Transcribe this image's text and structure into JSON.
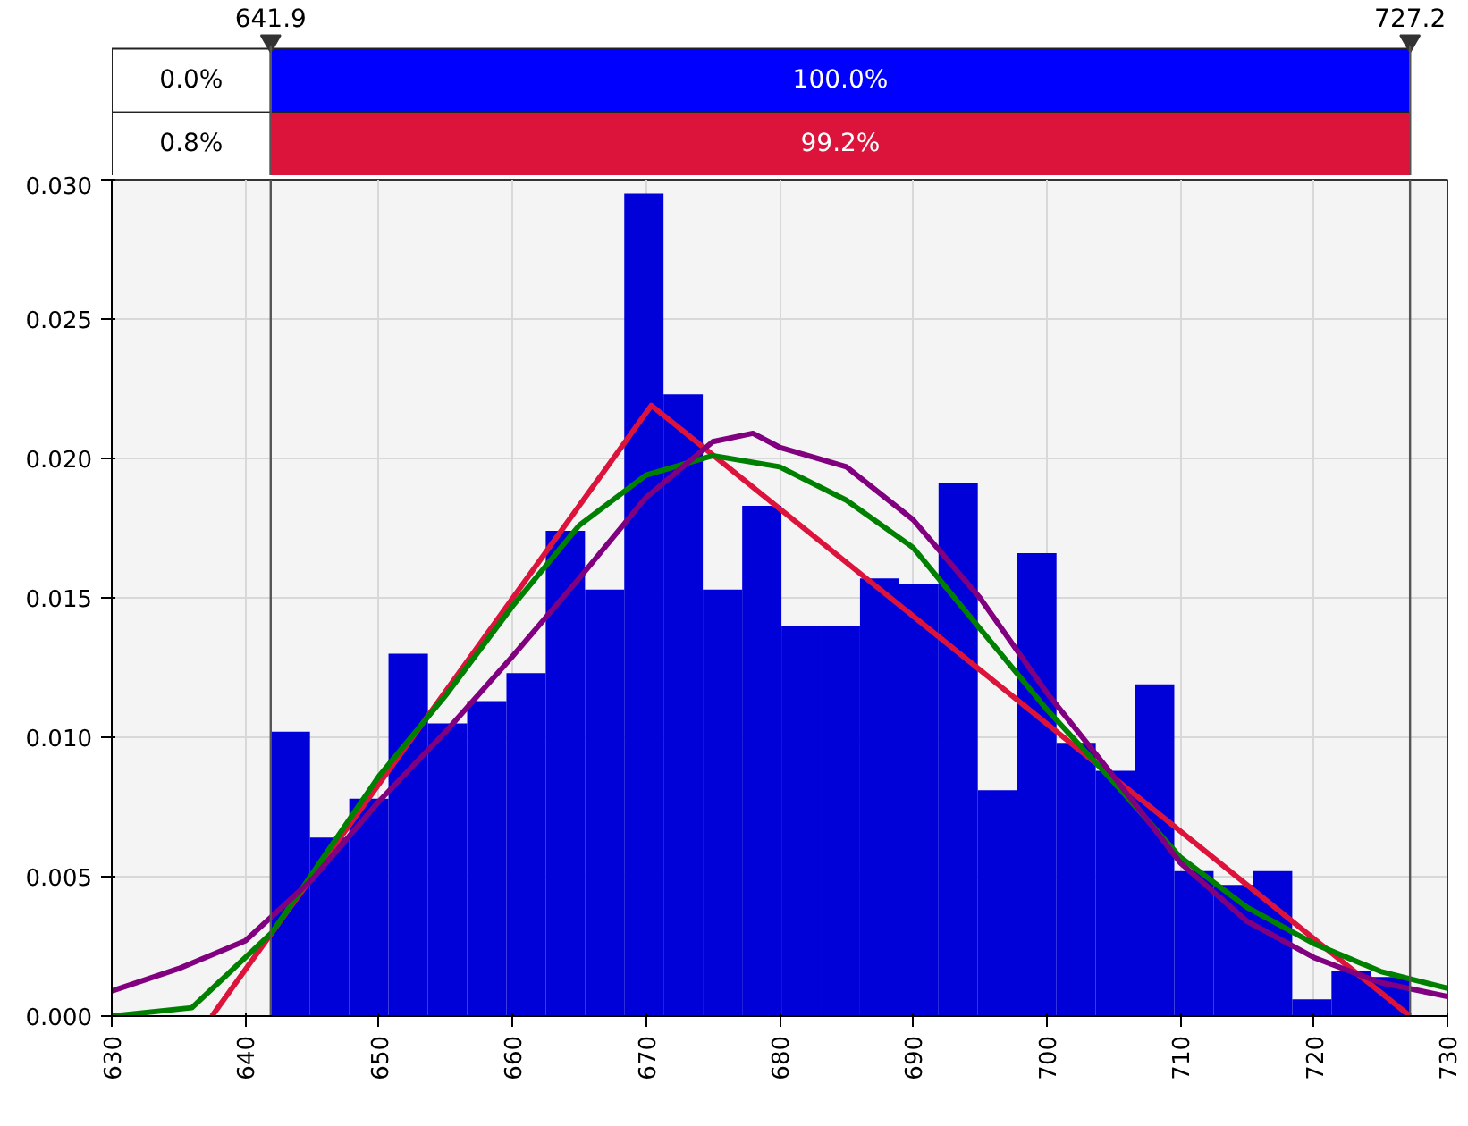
{
  "chart_data": {
    "type": "histogram",
    "bins": [
      641.9,
      644.84,
      647.78,
      650.72,
      653.67,
      656.61,
      659.55,
      662.49,
      665.43,
      668.37,
      671.31,
      674.25,
      677.2,
      680.14,
      683.08,
      686.02,
      688.96,
      691.9,
      694.84,
      697.79,
      700.73,
      703.67,
      706.61,
      709.55,
      712.49,
      715.43,
      718.38,
      721.32,
      724.26,
      727.2
    ],
    "values": [
      0.0102,
      0.0064,
      0.0078,
      0.013,
      0.0105,
      0.0113,
      0.0123,
      0.0174,
      0.0153,
      0.0295,
      0.0223,
      0.0153,
      0.0183,
      0.014,
      0.014,
      0.0157,
      0.0155,
      0.0191,
      0.0081,
      0.0166,
      0.0098,
      0.0088,
      0.0119,
      0.0052,
      0.0047,
      0.0052,
      0.0006,
      0.0016,
      0.0014
    ],
    "color": "#0000d8",
    "series": [
      {
        "type": "line",
        "color": "#dc143c",
        "x": [
          637.5,
          670.4,
          727.2
        ],
        "values": [
          0.0,
          0.0219,
          0.0
        ]
      },
      {
        "type": "line",
        "color": "#008000",
        "x": [
          630,
          636,
          638,
          642,
          650,
          655,
          660,
          665,
          670,
          675,
          680,
          685,
          690,
          695,
          700,
          705,
          710,
          715,
          720,
          725,
          730
        ],
        "values": [
          0.0,
          0.0003,
          0.0012,
          0.003,
          0.0086,
          0.0115,
          0.0147,
          0.0176,
          0.0194,
          0.0201,
          0.0197,
          0.0185,
          0.0168,
          0.0139,
          0.011,
          0.0084,
          0.0057,
          0.0039,
          0.0026,
          0.0016,
          0.001
        ]
      },
      {
        "type": "line",
        "color": "#800080",
        "x": [
          630,
          635,
          640,
          645,
          650,
          655,
          660,
          665,
          670,
          675,
          678,
          680,
          685,
          690,
          695,
          700,
          705,
          710,
          715,
          720,
          725,
          730
        ],
        "values": [
          0.0009,
          0.0017,
          0.0027,
          0.0049,
          0.0077,
          0.0102,
          0.0129,
          0.0157,
          0.0186,
          0.0206,
          0.0209,
          0.0204,
          0.0197,
          0.0178,
          0.015,
          0.0116,
          0.0086,
          0.0055,
          0.0034,
          0.0021,
          0.0012,
          0.0007
        ]
      }
    ],
    "xlim": [
      630,
      730
    ],
    "xticks": [
      630,
      640,
      650,
      660,
      670,
      680,
      690,
      700,
      710,
      720,
      730
    ],
    "ylim": [
      0,
      0.03
    ],
    "yticks": [
      {
        "value": 0,
        "label": "0.000"
      },
      {
        "value": 0.005,
        "label": "0.005"
      },
      {
        "value": 0.01,
        "label": "0.010"
      },
      {
        "value": 0.015,
        "label": "0.015"
      },
      {
        "value": 0.02,
        "label": "0.020"
      },
      {
        "value": 0.025,
        "label": "0.025"
      },
      {
        "value": 0.03,
        "label": "0.030"
      }
    ],
    "grid": true,
    "line_style": "solid",
    "ref_lines": [
      {
        "axis": "x",
        "value": 641.9,
        "label": "641.9"
      },
      {
        "axis": "x",
        "value": 727.2,
        "label": "727.2"
      }
    ],
    "annotations": [
      "0.0%",
      "100.0%",
      "0.8%",
      "99.2%"
    ]
  }
}
